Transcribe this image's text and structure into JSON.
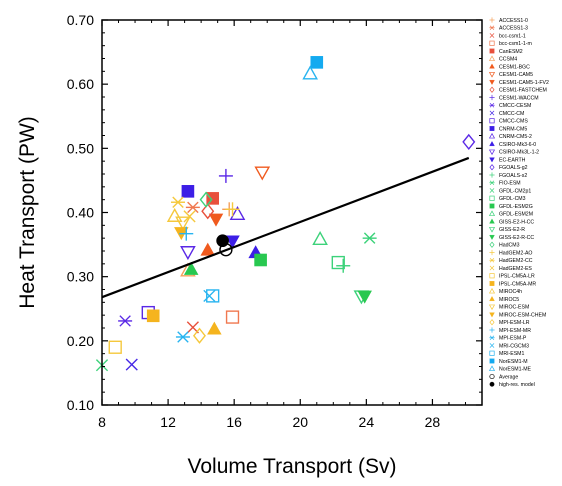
{
  "chart_data": {
    "type": "scatter",
    "title": "",
    "xlabel": "Volume Transport (Sv)",
    "ylabel": "Heat Transport (PW)",
    "xlim": [
      8,
      31
    ],
    "ylim": [
      0.1,
      0.7
    ],
    "xticks": [
      8,
      12,
      16,
      20,
      24,
      28
    ],
    "yticks": [
      0.1,
      0.2,
      0.3,
      0.4,
      0.5,
      0.6,
      0.7
    ],
    "xtick_labels": [
      "8",
      "12",
      "16",
      "20",
      "24",
      "28"
    ],
    "ytick_labels": [
      "0.10",
      "0.20",
      "0.30",
      "0.40",
      "0.50",
      "0.60",
      "0.70"
    ],
    "grid": false,
    "legend_position": "right",
    "regression_line": {
      "x": [
        8.0,
        30.2
      ],
      "y": [
        0.268,
        0.485
      ]
    },
    "series": [
      {
        "name": "ACCESS1-0",
        "marker": "plus",
        "color": "#f5a05a",
        "x": 15.7,
        "y": 0.405
      },
      {
        "name": "ACCESS1-3",
        "marker": "star",
        "color": "#f07850",
        "x": 13.5,
        "y": 0.408
      },
      {
        "name": "bcc-csm1-1",
        "marker": "cross",
        "color": "#e8503c",
        "x": 13.5,
        "y": 0.221
      },
      {
        "name": "bcc-csm1-1-m",
        "marker": "square-open",
        "color": "#f07850",
        "x": 15.9,
        "y": 0.237
      },
      {
        "name": "CanESM2",
        "marker": "square",
        "color": "#e8503c",
        "x": 14.7,
        "y": 0.422
      },
      {
        "name": "CCSM4",
        "marker": "triangle-open",
        "color": "#f5a05a",
        "x": 13.2,
        "y": 0.309
      },
      {
        "name": "CESM1-BGC",
        "marker": "triangle",
        "color": "#f05a1e",
        "x": 14.4,
        "y": 0.341
      },
      {
        "name": "CESM1-CAM5",
        "marker": "triangle-down-open",
        "color": "#f05a1e",
        "x": 17.7,
        "y": 0.463
      },
      {
        "name": "CESM1-CAM5-1-FV2",
        "marker": "triangle-down",
        "color": "#f05a1e",
        "x": 14.9,
        "y": 0.39
      },
      {
        "name": "CESM1-FASTCHEM",
        "marker": "diamond-open",
        "color": "#e8503c",
        "x": 14.4,
        "y": 0.402
      },
      {
        "name": "CESM1-WACCM",
        "marker": "plus",
        "color": "#5a28e6",
        "x": 15.5,
        "y": 0.457
      },
      {
        "name": "CMCC-CESM",
        "marker": "star",
        "color": "#5a28e6",
        "x": 9.4,
        "y": 0.231
      },
      {
        "name": "CMCC-CM",
        "marker": "cross",
        "color": "#4628e6",
        "x": 9.8,
        "y": 0.163
      },
      {
        "name": "CMCC-CMS",
        "marker": "square-open",
        "color": "#5a28e6",
        "x": 10.8,
        "y": 0.244
      },
      {
        "name": "CNRM-CM5",
        "marker": "square",
        "color": "#3c1ee6",
        "x": 13.2,
        "y": 0.433
      },
      {
        "name": "CNRM-CM5-2",
        "marker": "triangle-open",
        "color": "#5a28e6",
        "x": 16.2,
        "y": 0.397
      },
      {
        "name": "CSIRO-Mk3-6-0",
        "marker": "triangle",
        "color": "#3c1ee6",
        "x": 17.3,
        "y": 0.337
      },
      {
        "name": "CSIRO-Mk3L-1-2",
        "marker": "triangle-down-open",
        "color": "#5a28e6",
        "x": 13.2,
        "y": 0.339
      },
      {
        "name": "EC-EARTH",
        "marker": "triangle-down",
        "color": "#3c1ee6",
        "x": 15.9,
        "y": 0.356
      },
      {
        "name": "FGOALS-g2",
        "marker": "diamond-open",
        "color": "#5a28e6",
        "x": 30.2,
        "y": 0.51
      },
      {
        "name": "FGOALS-s2",
        "marker": "plus",
        "color": "#3cd27a",
        "x": 22.6,
        "y": 0.317
      },
      {
        "name": "FIO-ESM",
        "marker": "star",
        "color": "#3cd27a",
        "x": 24.2,
        "y": 0.36
      },
      {
        "name": "GFDL-CM2p1",
        "marker": "cross",
        "color": "#3cd27a",
        "x": 8.0,
        "y": 0.162
      },
      {
        "name": "GFDL-CM3",
        "marker": "square-open",
        "color": "#3cd27a",
        "x": 22.3,
        "y": 0.322
      },
      {
        "name": "GFDL-ESM2G",
        "marker": "square",
        "color": "#28c850",
        "x": 17.6,
        "y": 0.326
      },
      {
        "name": "GFDL-ESM2M",
        "marker": "triangle-open",
        "color": "#3cd27a",
        "x": 21.2,
        "y": 0.358
      },
      {
        "name": "GISS-E2-H-CC",
        "marker": "triangle",
        "color": "#28c850",
        "x": 13.4,
        "y": 0.311
      },
      {
        "name": "GISS-E2-R",
        "marker": "triangle-down-open",
        "color": "#3cd27a",
        "x": 23.7,
        "y": 0.27
      },
      {
        "name": "GISS-E2-R-CC",
        "marker": "triangle-down",
        "color": "#28c850",
        "x": 23.9,
        "y": 0.27
      },
      {
        "name": "HadCM3",
        "marker": "diamond-open",
        "color": "#3cd27a",
        "x": 14.3,
        "y": 0.42
      },
      {
        "name": "HadGEM2-AO",
        "marker": "plus",
        "color": "#f5c83c",
        "x": 15.9,
        "y": 0.405
      },
      {
        "name": "HadGEM2-CC",
        "marker": "star",
        "color": "#f5c83c",
        "x": 12.6,
        "y": 0.416
      },
      {
        "name": "HadGEM2-ES",
        "marker": "cross",
        "color": "#f5c83c",
        "x": 13.3,
        "y": 0.394
      },
      {
        "name": "IPSL-CM5A-LR",
        "marker": "square-open",
        "color": "#f5c83c",
        "x": 8.8,
        "y": 0.19
      },
      {
        "name": "IPSL-CM5A-MR",
        "marker": "square",
        "color": "#f5b41e",
        "x": 11.1,
        "y": 0.239
      },
      {
        "name": "MIROC4h",
        "marker": "triangle-open",
        "color": "#f5c83c",
        "x": 12.4,
        "y": 0.394
      },
      {
        "name": "MIROC5",
        "marker": "triangle",
        "color": "#f5b41e",
        "x": 14.8,
        "y": 0.218
      },
      {
        "name": "MIROC-ESM",
        "marker": "triangle-down-open",
        "color": "#f5c83c",
        "x": 12.9,
        "y": 0.385
      },
      {
        "name": "MIROC-ESM-CHEM",
        "marker": "triangle-down",
        "color": "#f5b41e",
        "x": 12.8,
        "y": 0.369
      },
      {
        "name": "MPI-ESM-LR",
        "marker": "diamond-open",
        "color": "#f5c83c",
        "x": 13.9,
        "y": 0.208
      },
      {
        "name": "MPI-ESM-MR",
        "marker": "plus",
        "color": "#28b4f0",
        "x": 13.1,
        "y": 0.367
      },
      {
        "name": "MPI-ESM-P",
        "marker": "star",
        "color": "#28b4f0",
        "x": 12.9,
        "y": 0.206
      },
      {
        "name": "MRI-CGCM3",
        "marker": "cross",
        "color": "#28b4f0",
        "x": 14.5,
        "y": 0.27
      },
      {
        "name": "MRI-ESM1",
        "marker": "square-open",
        "color": "#28b4f0",
        "x": 14.7,
        "y": 0.27
      },
      {
        "name": "NorESM1-M",
        "marker": "square",
        "color": "#14aaf0",
        "x": 21.0,
        "y": 0.634
      },
      {
        "name": "NorESM1-ME",
        "marker": "triangle-open",
        "color": "#28b4f0",
        "x": 20.6,
        "y": 0.616
      },
      {
        "name": "Average",
        "marker": "circle-open",
        "color": "#000000",
        "x": 15.5,
        "y": 0.342
      },
      {
        "name": "high-res. model",
        "marker": "circle",
        "color": "#000000",
        "x": 15.3,
        "y": 0.356
      }
    ]
  }
}
